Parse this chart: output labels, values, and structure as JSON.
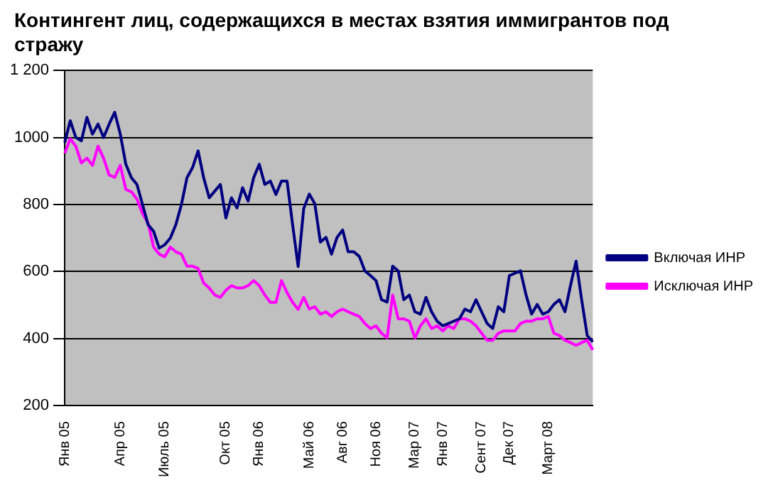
{
  "chart_data": {
    "type": "line",
    "title": "Контингент лиц, содержащихся в местах взятия иммигрантов под стражу",
    "categories": [
      "Янв 05",
      null,
      null,
      null,
      null,
      null,
      null,
      null,
      null,
      null,
      "Апр 05",
      null,
      null,
      null,
      null,
      null,
      null,
      null,
      "Июль 05",
      null,
      null,
      null,
      null,
      null,
      null,
      null,
      null,
      null,
      null,
      "Окт 05",
      null,
      null,
      null,
      null,
      null,
      "Янв 06",
      null,
      null,
      null,
      null,
      null,
      null,
      null,
      null,
      "Май 06",
      null,
      null,
      null,
      null,
      null,
      "Авг 06",
      null,
      null,
      null,
      null,
      null,
      "Ноя 06",
      null,
      null,
      null,
      null,
      null,
      null,
      "Мар 07",
      null,
      null,
      null,
      null,
      "Янв 07",
      null,
      null,
      null,
      null,
      null,
      null,
      "Сент 07",
      null,
      null,
      null,
      null,
      "Дек 07",
      null,
      null,
      null,
      null,
      null,
      null,
      "Март 08",
      null,
      null,
      null,
      null,
      null,
      null,
      null,
      null
    ],
    "series": [
      {
        "name": "Включая ИНР",
        "color": "#000080",
        "values": [
          985,
          1050,
          1000,
          990,
          1060,
          1010,
          1040,
          1000,
          1040,
          1075,
          1010,
          920,
          880,
          860,
          800,
          740,
          720,
          670,
          680,
          700,
          740,
          800,
          880,
          910,
          960,
          880,
          820,
          840,
          860,
          760,
          820,
          790,
          850,
          810,
          880,
          920,
          860,
          870,
          830,
          870,
          870,
          740,
          615,
          788,
          831,
          802,
          688,
          702,
          652,
          702,
          724,
          659,
          659,
          645,
          602,
          588,
          573,
          516,
          509,
          616,
          602,
          516,
          530,
          480,
          473,
          523,
          480,
          452,
          438,
          445,
          452,
          459,
          488,
          480,
          516,
          480,
          445,
          430,
          495,
          480,
          588,
          595,
          602,
          530,
          473,
          502,
          473,
          480,
          502,
          516,
          480,
          559,
          631,
          516,
          409,
          390
        ]
      },
      {
        "name": "Исключая ИНР",
        "color": "#ff00ff",
        "values": [
          953,
          996,
          974,
          924,
          938,
          917,
          974,
          938,
          888,
          881,
          917,
          845,
          838,
          816,
          773,
          745,
          673,
          652,
          644,
          673,
          659,
          652,
          616,
          616,
          609,
          566,
          551,
          530,
          523,
          544,
          558,
          551,
          551,
          558,
          573,
          558,
          530,
          508,
          508,
          573,
          537,
          508,
          487,
          523,
          488,
          495,
          473,
          480,
          466,
          480,
          488,
          480,
          473,
          466,
          445,
          430,
          438,
          416,
          402,
          530,
          459,
          459,
          452,
          402,
          438,
          459,
          430,
          438,
          423,
          438,
          430,
          459,
          459,
          452,
          438,
          416,
          395,
          395,
          416,
          423,
          423,
          423,
          445,
          452,
          452,
          459,
          459,
          466,
          416,
          409,
          395,
          388,
          380,
          388,
          395,
          366
        ]
      }
    ],
    "ylim": [
      200,
      1200
    ],
    "yticks": [
      200,
      400,
      600,
      800,
      1000,
      {
        "value": 1200,
        "label": "1 200"
      }
    ],
    "grid": "y",
    "legend": "right",
    "marker": "none",
    "line_style": "solid"
  }
}
